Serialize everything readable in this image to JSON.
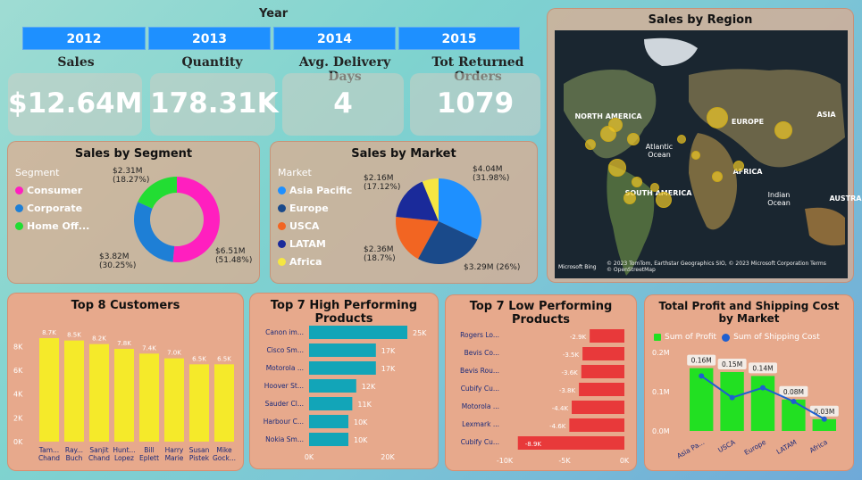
{
  "year_filter": {
    "title": "Year",
    "years": [
      "2012",
      "2013",
      "2014",
      "2015"
    ]
  },
  "kpis": [
    {
      "title": "Sales",
      "value": "$12.64M"
    },
    {
      "title": "Quantity",
      "value": "178.31K"
    },
    {
      "title": "Avg. Delivery Days",
      "value": "4"
    },
    {
      "title": "Tot Returned Orders",
      "value": "1079"
    }
  ],
  "segment": {
    "title": "Sales by Segment",
    "legend_title": "Segment",
    "items": [
      {
        "name": "Consumer",
        "value": 51.48,
        "label1": "$6.51M",
        "label2": "(51.48%)",
        "color": "#ff1fbf"
      },
      {
        "name": "Corporate",
        "value": 30.25,
        "label1": "$3.82M",
        "label2": "(30.25%)",
        "color": "#1e7fd6"
      },
      {
        "name": "Home Off...",
        "value": 18.27,
        "label1": "$2.31M",
        "label2": "(18.27%)",
        "color": "#22dd33"
      }
    ]
  },
  "market": {
    "title": "Sales by Market",
    "legend_title": "Market",
    "items": [
      {
        "name": "Asia Pacific",
        "value": 31.98,
        "label1": "$4.04M",
        "label2": "(31.98%)",
        "color": "#1e90ff"
      },
      {
        "name": "Europe",
        "value": 26,
        "label1": "$3.29M (26%)",
        "label2": "",
        "color": "#1a4a8a"
      },
      {
        "name": "USCA",
        "value": 18.7,
        "label1": "$2.36M",
        "label2": "(18.7%)",
        "color": "#f26522"
      },
      {
        "name": "LATAM",
        "value": 17.12,
        "label1": "$2.16M",
        "label2": "(17.12%)",
        "color": "#1a2a9a"
      },
      {
        "name": "Africa",
        "value": 6.2,
        "label1": "",
        "label2": "",
        "color": "#f5e642"
      }
    ]
  },
  "map": {
    "title": "Sales by Region",
    "labels": [
      "NORTH AMERICA",
      "EUROPE",
      "ASIA",
      "Atlantic Ocean",
      "AFRICA",
      "SOUTH AMERICA",
      "Indian Ocean",
      "AUSTRAL"
    ],
    "attribution": "© 2023 TomTom, Earthstar Geographics SIO, © 2023 Microsoft Corporation  Terms",
    "osm": "© OpenStreetMap",
    "brand": "Microsoft Bing"
  },
  "customers": {
    "title": "Top 8 Customers",
    "chart_data": {
      "type": "bar",
      "categories": [
        "Tam... Chand",
        "Ray... Buch",
        "Sanjit Chand",
        "Hunt... Lopez",
        "Bill Eplett",
        "Harry Marie",
        "Susan Pistek",
        "Mike Gock..."
      ],
      "values": [
        8.7,
        8.5,
        8.2,
        7.8,
        7.4,
        7.0,
        6.5,
        6.5
      ],
      "value_labels": [
        "8.7K",
        "8.5K",
        "8.2K",
        "7.8K",
        "7.4K",
        "7.0K",
        "6.5K",
        "6.5K"
      ],
      "yticks": [
        "0K",
        "2K",
        "4K",
        "6K",
        "8K"
      ],
      "ylim": [
        0,
        9
      ],
      "color": "#f5ea2a"
    }
  },
  "high_products": {
    "title": "Top 7 High Performing Products",
    "chart_data": {
      "type": "bar",
      "categories": [
        "Canon im...",
        "Cisco Sm...",
        "Motorola ...",
        "Hoover St...",
        "Sauder Cl...",
        "Harbour C...",
        "Nokia Sm..."
      ],
      "values": [
        25,
        17,
        17,
        12,
        11,
        10,
        10
      ],
      "value_labels": [
        "25K",
        "17K",
        "17K",
        "12K",
        "11K",
        "10K",
        "10K"
      ],
      "xticks": [
        "0K",
        "20K"
      ],
      "xlim": [
        0,
        25
      ],
      "color": "#12a5b8"
    }
  },
  "low_products": {
    "title": "Top 7 Low Performing Products",
    "chart_data": {
      "type": "bar",
      "categories": [
        "Rogers Lo...",
        "Bevis Co...",
        "Bevis Rou...",
        "Cubify Cu...",
        "Motorola ...",
        "Lexmark ...",
        "Cubify Cu..."
      ],
      "values": [
        -2.9,
        -3.5,
        -3.6,
        -3.8,
        -4.4,
        -4.6,
        -8.9
      ],
      "value_labels": [
        "-2.9K",
        "-3.5K",
        "-3.6K",
        "-3.8K",
        "-4.4K",
        "-4.6K",
        "-8.9K"
      ],
      "xticks": [
        "-10K",
        "-5K",
        "0K"
      ],
      "xlim": [
        -10,
        0
      ],
      "color": "#e8393a"
    }
  },
  "profit_shipping": {
    "title": "Total Profit and Shipping Cost by Market",
    "legend": [
      "Sum of Profit",
      "Sum of Shipping Cost"
    ],
    "chart_data": {
      "type": "bar",
      "categories": [
        "Asia Pa...",
        "USCA",
        "Europe",
        "LATAM",
        "Africa"
      ],
      "series": [
        {
          "name": "Sum of Profit",
          "values": [
            0.16,
            0.15,
            0.14,
            0.08,
            0.03
          ],
          "labels": [
            "0.16M",
            "0.15M",
            "0.14M",
            "0.08M",
            "0.03M"
          ],
          "color": "#22e022"
        },
        {
          "name": "Sum of Shipping Cost",
          "values": [
            0.14,
            0.085,
            0.11,
            0.075,
            0.03
          ],
          "color": "#1e5fd0"
        }
      ],
      "yticks": [
        "0.0M",
        "0.1M",
        "0.2M"
      ],
      "ylim": [
        0,
        0.2
      ]
    }
  }
}
